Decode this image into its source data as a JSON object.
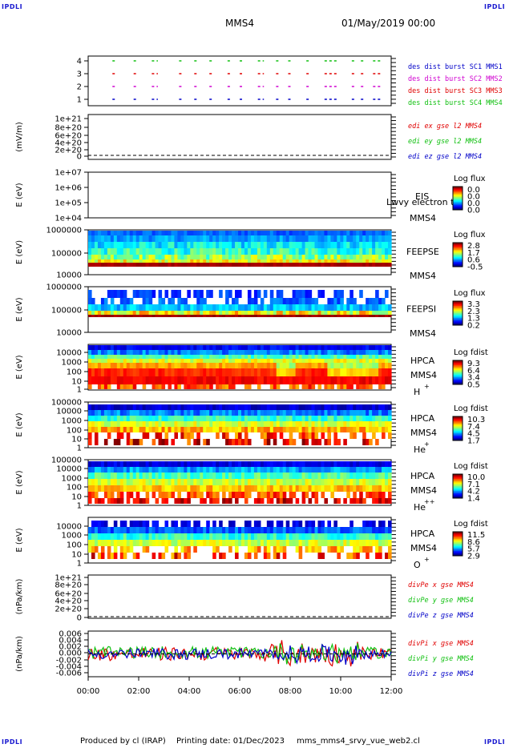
{
  "corner_label": "IPDLI",
  "header": {
    "spacecraft": "MMS4",
    "date": "01/May/2019 00:00"
  },
  "footer": {
    "producer": "Produced by cl (IRAP)",
    "print_date": "Printing date: 01/Dec/2023",
    "script": "mms_mms4_srvy_vue_web2.cl"
  },
  "colors": {
    "red": "#e00000",
    "green": "#10c010",
    "blue": "#0000c8",
    "magenta": "#d000d0"
  },
  "chart_data": [
    {
      "id": "burst",
      "type": "scatter",
      "ylabel": "",
      "yticks": [
        "1",
        "2",
        "3",
        "4"
      ],
      "legend": [
        {
          "text": "des dist burst SC1 MMS1",
          "color": "blue"
        },
        {
          "text": "des dist burst SC2 MMS2",
          "color": "magenta"
        },
        {
          "text": "des dist burst SC3 MMS3",
          "color": "red"
        },
        {
          "text": "des dist burst SC4 MMS4",
          "color": "green"
        }
      ]
    },
    {
      "id": "edi",
      "type": "line",
      "ylabel": "(mV/m)",
      "yticks": [
        "0",
        "2e+20",
        "4e+20",
        "6e+20",
        "8e+20",
        "1e+21"
      ],
      "legend": [
        {
          "text": "edi ex gse l2 MMS4",
          "color": "red"
        },
        {
          "text": "edi ey gse l2 MMS4",
          "color": "green"
        },
        {
          "text": "edi ez gse l2 MMS4",
          "color": "blue"
        }
      ]
    },
    {
      "id": "eis",
      "type": "heatmap",
      "ylabel": "E (eV)",
      "yticks": [
        "1e+04",
        "1e+05",
        "1e+06",
        "1e+07"
      ],
      "labels": [
        "EIS",
        "MMS4"
      ],
      "overlay": "Lwvy electron to",
      "cbar_title": "Log flux",
      "cbar_ticks": [
        "0.0",
        "0.0",
        "0.0",
        "0.0"
      ]
    },
    {
      "id": "feepse",
      "type": "heatmap",
      "ylabel": "E (eV)",
      "yticks": [
        "10000",
        "100000",
        "1000000"
      ],
      "labels": [
        "FEEPSE",
        "MMS4"
      ],
      "cbar_title": "Log flux",
      "cbar_ticks": [
        "2.8",
        "1.7",
        "0.6",
        "-0.5"
      ]
    },
    {
      "id": "feepsi",
      "type": "heatmap",
      "ylabel": "E (eV)",
      "yticks": [
        "10000",
        "100000",
        "1000000"
      ],
      "labels": [
        "FEEPSI",
        "MMS4"
      ],
      "cbar_title": "Log flux",
      "cbar_ticks": [
        "3.3",
        "2.3",
        "1.3",
        "0.2"
      ]
    },
    {
      "id": "hpca_h",
      "type": "heatmap",
      "ylabel": "E (eV)",
      "yticks": [
        "1",
        "10",
        "100",
        "1000",
        "10000"
      ],
      "labels": [
        "HPCA",
        "MMS4",
        "H"
      ],
      "sup": "+",
      "cbar_title": "Log fdist",
      "cbar_ticks": [
        "9.3",
        "6.4",
        "3.4",
        "0.5"
      ]
    },
    {
      "id": "hpca_he",
      "type": "heatmap",
      "ylabel": "E (eV)",
      "yticks": [
        "1",
        "10",
        "100",
        "1000",
        "10000",
        "100000"
      ],
      "labels": [
        "HPCA",
        "MMS4",
        "He"
      ],
      "sup": "+",
      "cbar_title": "Log fdist",
      "cbar_ticks": [
        "10.3",
        "7.4",
        "4.5",
        "1.7"
      ]
    },
    {
      "id": "hpca_hepp",
      "type": "heatmap",
      "ylabel": "E (eV)",
      "yticks": [
        "1",
        "10",
        "100",
        "1000",
        "10000",
        "100000"
      ],
      "labels": [
        "HPCA",
        "MMS4",
        "He"
      ],
      "sup": "++",
      "cbar_title": "Log fdist",
      "cbar_ticks": [
        "10.0",
        "7.1",
        "4.2",
        "1.4"
      ]
    },
    {
      "id": "hpca_o",
      "type": "heatmap",
      "ylabel": "E (eV)",
      "yticks": [
        "1",
        "10",
        "100",
        "1000",
        "10000"
      ],
      "labels": [
        "HPCA",
        "MMS4",
        "O"
      ],
      "sup": "+",
      "cbar_title": "Log fdist",
      "cbar_ticks": [
        "11.5",
        "8.6",
        "5.7",
        "2.9"
      ]
    },
    {
      "id": "divpe",
      "type": "line",
      "ylabel": "(nPa/km)",
      "yticks": [
        "0",
        "2e+20",
        "4e+20",
        "6e+20",
        "8e+20",
        "1e+21"
      ],
      "legend": [
        {
          "text": "divPe x gse MMS4",
          "color": "red"
        },
        {
          "text": "divPe y gse MMS4",
          "color": "green"
        },
        {
          "text": "divPe z gse MMS4",
          "color": "blue"
        }
      ]
    },
    {
      "id": "divpi",
      "type": "line",
      "ylabel": "(nPa/km)",
      "yticks": [
        "-0.006",
        "-0.004",
        "-0.002",
        "0.000",
        "0.002",
        "0.004",
        "0.006"
      ],
      "ylim": [
        -0.007,
        0.007
      ],
      "legend": [
        {
          "text": "divPi x gse MMS4",
          "color": "red"
        },
        {
          "text": "divPi y gse MMS4",
          "color": "green"
        },
        {
          "text": "divPi z gse MMS4",
          "color": "blue"
        }
      ]
    }
  ],
  "xaxis": {
    "ticks": [
      "00:00",
      "02:00",
      "04:00",
      "06:00",
      "08:00",
      "10:00",
      "12:00"
    ],
    "range_hours": [
      0,
      12
    ]
  }
}
